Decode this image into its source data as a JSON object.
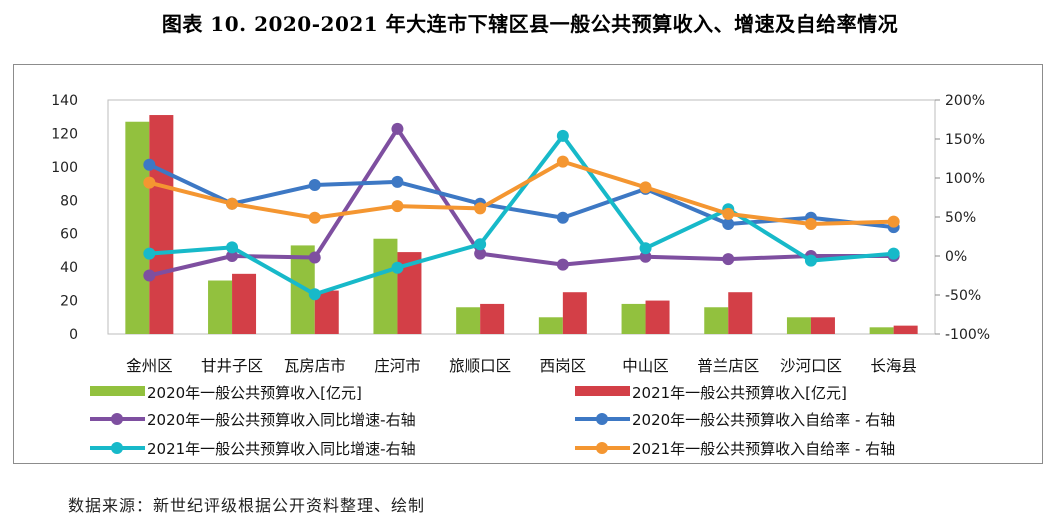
{
  "title": "图表 10. 2020-2021 年大连市下辖区县一般公共预算收入、增速及自给率情况",
  "source": "数据来源：新世纪评级根据公开资料整理、绘制",
  "colors": {
    "s2020_income": "#92c13e",
    "s2021_income": "#d33f47",
    "s2020_growth": "#7e4fa0",
    "s2020_self": "#3d78c4",
    "s2021_growth": "#17b9c9",
    "s2021_self": "#f49631"
  },
  "chart_data": {
    "type": "bar",
    "title": "图表 10. 2020-2021 年大连市下辖区县一般公共预算收入、增速及自给率情况",
    "categories": [
      "金州区",
      "甘井子区",
      "瓦房店市",
      "庄河市",
      "旅顺口区",
      "西岗区",
      "中山区",
      "普兰店区",
      "沙河口区",
      "长海县"
    ],
    "left_axis": {
      "min": 0,
      "max": 140,
      "step": 20,
      "ticks": [
        "0",
        "20",
        "40",
        "60",
        "80",
        "100",
        "120",
        "140"
      ]
    },
    "right_axis": {
      "min": -100,
      "max": 200,
      "step": 50,
      "ticks": [
        "-100%",
        "-50%",
        "0%",
        "50%",
        "100%",
        "150%",
        "200%"
      ]
    },
    "series": [
      {
        "name": "2020年一般公共预算收入[亿元]",
        "kind": "bar",
        "axis": "left",
        "color_key": "s2020_income",
        "values": [
          127,
          32,
          53,
          57,
          16,
          10,
          18,
          16,
          10,
          4
        ]
      },
      {
        "name": "2021年一般公共预算收入[亿元]",
        "kind": "bar",
        "axis": "left",
        "color_key": "s2021_income",
        "values": [
          131,
          36,
          26,
          49,
          18,
          25,
          20,
          25,
          10,
          5
        ]
      },
      {
        "name": "2020年一般公共预算收入同比增速-右轴",
        "kind": "line",
        "axis": "right",
        "color_key": "s2020_growth",
        "values": [
          -25,
          0,
          -2,
          163,
          3,
          -11,
          -1,
          -4,
          0,
          0
        ]
      },
      {
        "name": "2020年一般公共预算收入自给率 - 右轴",
        "kind": "line",
        "axis": "right",
        "color_key": "s2020_self",
        "values": [
          117,
          67,
          91,
          95,
          67,
          49,
          86,
          41,
          49,
          37
        ]
      },
      {
        "name": "2021年一般公共预算收入同比增速-右轴",
        "kind": "line",
        "axis": "right",
        "color_key": "s2021_growth",
        "values": [
          3,
          11,
          -49,
          -15,
          15,
          154,
          10,
          60,
          -6,
          3
        ]
      },
      {
        "name": "2021年一般公共预算收入自给率 - 右轴",
        "kind": "line",
        "axis": "right",
        "color_key": "s2021_self",
        "values": [
          94,
          67,
          49,
          64,
          61,
          121,
          88,
          54,
          41,
          44
        ]
      }
    ],
    "legend_position": "bottom"
  }
}
